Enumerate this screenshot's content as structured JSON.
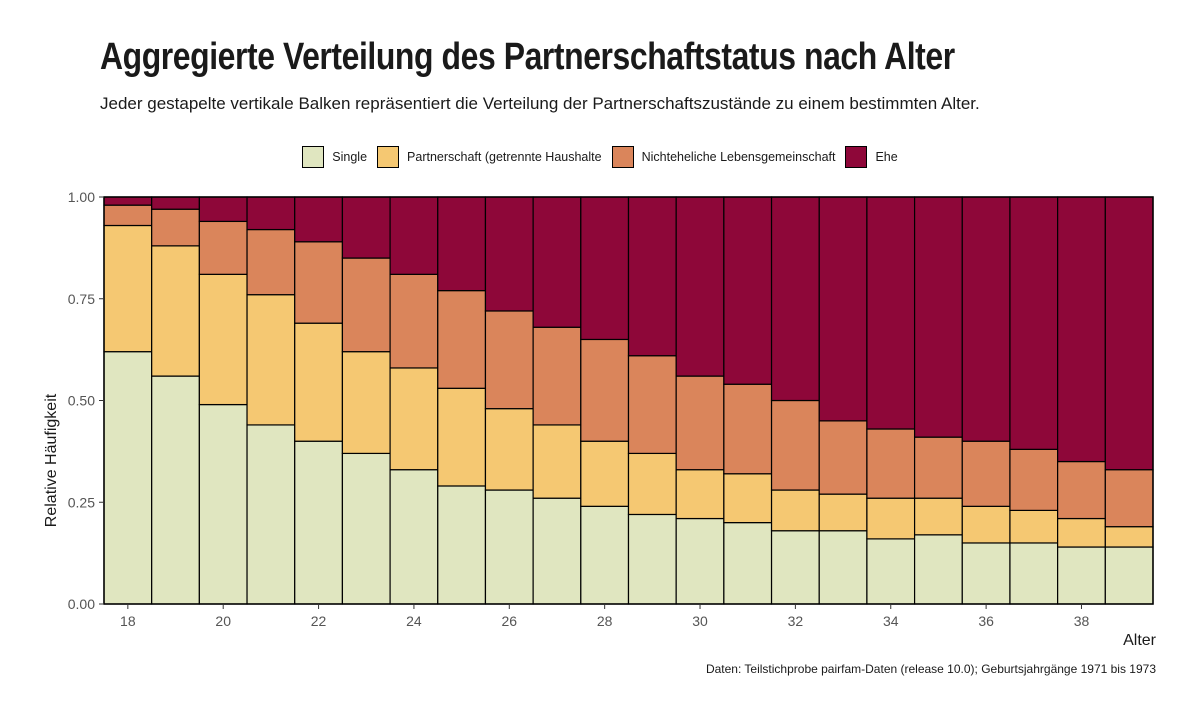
{
  "title": "Aggregierte Verteilung des Partnerschaftstatus nach Alter",
  "subtitle": "Jeder gestapelte vertikale Balken repräsentiert die Verteilung der Partnerschaftszustände zu einem bestimmten Alter.",
  "caption": "Daten: Teilstichprobe pairfam-Daten (release 10.0); Geburtsjahrgänge 1971 bis 1973",
  "colors": {
    "single": "#e0e6c0",
    "partnerschaft": "#f5c872",
    "nel": "#da855b",
    "ehe": "#8e0739"
  },
  "chart_data": {
    "type": "bar",
    "stacked": true,
    "title": "Aggregierte Verteilung des Partnerschaftstatus nach Alter",
    "xlabel": "Alter",
    "ylabel": "Relative Häufigkeit",
    "ylim": [
      0,
      1
    ],
    "yticks": [
      "0.00",
      "0.25",
      "0.50",
      "0.75",
      "1.00"
    ],
    "xticks": [
      18,
      20,
      22,
      24,
      26,
      28,
      30,
      32,
      34,
      36,
      38
    ],
    "categories": [
      18,
      19,
      20,
      21,
      22,
      23,
      24,
      25,
      26,
      27,
      28,
      29,
      30,
      31,
      32,
      33,
      34,
      35,
      36,
      37,
      38,
      39
    ],
    "legend_position": "top",
    "series": [
      {
        "name": "Single",
        "values": [
          0.62,
          0.56,
          0.49,
          0.44,
          0.4,
          0.37,
          0.33,
          0.29,
          0.28,
          0.26,
          0.24,
          0.22,
          0.21,
          0.2,
          0.18,
          0.18,
          0.16,
          0.17,
          0.15,
          0.15,
          0.14,
          0.14
        ]
      },
      {
        "name": "Partnerschaft (getrennte Haushalte",
        "values": [
          0.31,
          0.32,
          0.32,
          0.32,
          0.29,
          0.25,
          0.25,
          0.24,
          0.2,
          0.18,
          0.16,
          0.15,
          0.12,
          0.12,
          0.1,
          0.09,
          0.1,
          0.09,
          0.09,
          0.08,
          0.07,
          0.05
        ]
      },
      {
        "name": "Nichteheliche Lebensgemeinschaft",
        "values": [
          0.05,
          0.09,
          0.13,
          0.16,
          0.2,
          0.23,
          0.23,
          0.24,
          0.24,
          0.24,
          0.25,
          0.24,
          0.23,
          0.22,
          0.22,
          0.18,
          0.17,
          0.15,
          0.16,
          0.15,
          0.14,
          0.14
        ]
      },
      {
        "name": "Ehe",
        "values": [
          0.02,
          0.03,
          0.06,
          0.08,
          0.11,
          0.15,
          0.19,
          0.23,
          0.28,
          0.32,
          0.35,
          0.39,
          0.44,
          0.46,
          0.5,
          0.55,
          0.57,
          0.59,
          0.6,
          0.62,
          0.65,
          0.67
        ]
      }
    ]
  }
}
